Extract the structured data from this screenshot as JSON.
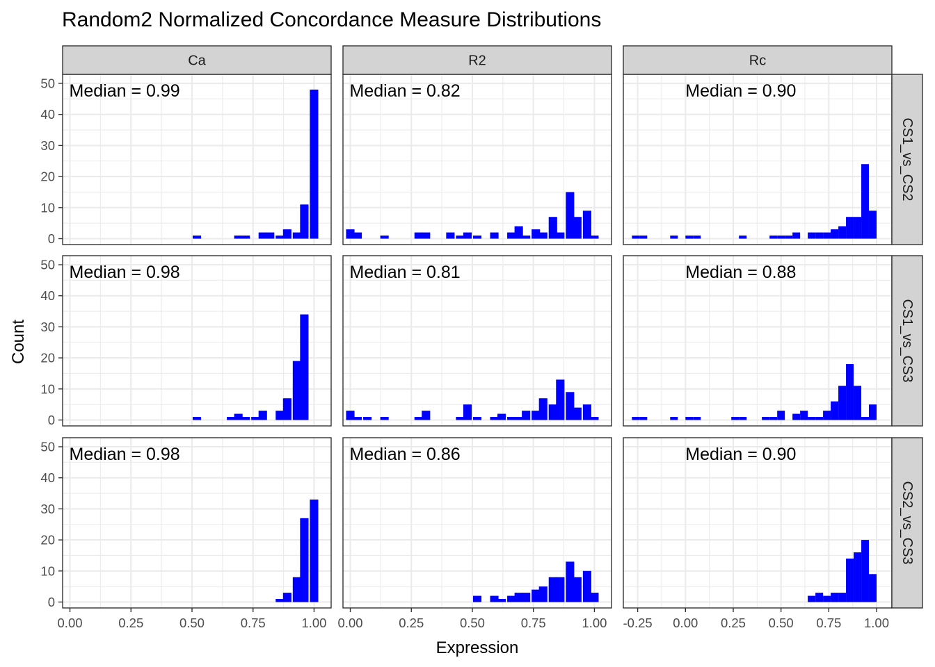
{
  "chart_data": {
    "type": "histogram-facet-grid",
    "title": "Random2 Normalized Concordance Measure Distributions",
    "xlabel": "Expression",
    "ylabel": "Count",
    "grid": true,
    "bar_color": "#0000ff",
    "columns": [
      "Ca",
      "R2",
      "Rc"
    ],
    "rows": [
      "CS1_vs_CS2",
      "CS1_vs_CS3",
      "CS2_vs_CS3"
    ],
    "ylim": [
      0,
      50
    ],
    "yticks": [
      "0",
      "10",
      "20",
      "30",
      "40",
      "50"
    ],
    "x_axes": {
      "Ca": {
        "xlim": [
          -0.03,
          1.07
        ],
        "ticks": [
          0,
          0.25,
          0.5,
          0.75,
          1.0
        ],
        "tick_labels": [
          "0.00",
          "0.25",
          "0.50",
          "0.75",
          "1.00"
        ],
        "binwidth": 0.0345
      },
      "R2": {
        "xlim": [
          -0.03,
          1.07
        ],
        "ticks": [
          0,
          0.25,
          0.5,
          0.75,
          1.0
        ],
        "tick_labels": [
          "0.00",
          "0.25",
          "0.50",
          "0.75",
          "1.00"
        ],
        "binwidth": 0.0345
      },
      "Rc": {
        "xlim": [
          -0.325,
          1.08
        ],
        "ticks": [
          -0.25,
          0,
          0.25,
          0.5,
          0.75,
          1.0
        ],
        "tick_labels": [
          "-0.25",
          "0.00",
          "0.25",
          "0.50",
          "0.75",
          "1.00"
        ],
        "binwidth": 0.04
      }
    },
    "panels": [
      {
        "row": "CS1_vs_CS2",
        "col": "Ca",
        "median_label": "Median = 0.99",
        "bins": [
          [
            0.52,
            1
          ],
          [
            0.69,
            1
          ],
          [
            0.72,
            1
          ],
          [
            0.79,
            2
          ],
          [
            0.82,
            2
          ],
          [
            0.86,
            1
          ],
          [
            0.89,
            3
          ],
          [
            0.93,
            2
          ],
          [
            0.96,
            11
          ],
          [
            1.0,
            48
          ]
        ]
      },
      {
        "row": "CS1_vs_CS2",
        "col": "R2",
        "median_label": "Median = 0.82",
        "bins": [
          [
            0.0,
            3
          ],
          [
            0.03,
            2
          ],
          [
            0.14,
            1
          ],
          [
            0.28,
            2
          ],
          [
            0.31,
            2
          ],
          [
            0.41,
            2
          ],
          [
            0.45,
            1
          ],
          [
            0.48,
            2
          ],
          [
            0.52,
            1
          ],
          [
            0.59,
            2
          ],
          [
            0.66,
            2
          ],
          [
            0.69,
            4
          ],
          [
            0.72,
            1
          ],
          [
            0.76,
            3
          ],
          [
            0.79,
            2
          ],
          [
            0.83,
            7
          ],
          [
            0.86,
            2
          ],
          [
            0.9,
            15
          ],
          [
            0.93,
            7
          ],
          [
            0.97,
            9
          ],
          [
            1.0,
            1
          ]
        ]
      },
      {
        "row": "CS1_vs_CS2",
        "col": "Rc",
        "median_label": "Median = 0.90",
        "bins": [
          [
            -0.26,
            1
          ],
          [
            -0.22,
            1
          ],
          [
            -0.06,
            1
          ],
          [
            0.02,
            1
          ],
          [
            0.06,
            1
          ],
          [
            0.3,
            1
          ],
          [
            0.46,
            1
          ],
          [
            0.5,
            1
          ],
          [
            0.54,
            1
          ],
          [
            0.58,
            2
          ],
          [
            0.66,
            2
          ],
          [
            0.7,
            2
          ],
          [
            0.74,
            2
          ],
          [
            0.78,
            3
          ],
          [
            0.82,
            4
          ],
          [
            0.86,
            7
          ],
          [
            0.9,
            7
          ],
          [
            0.94,
            24
          ],
          [
            0.98,
            9
          ]
        ]
      },
      {
        "row": "CS1_vs_CS3",
        "col": "Ca",
        "median_label": "Median = 0.98",
        "bins": [
          [
            0.52,
            1
          ],
          [
            0.66,
            1
          ],
          [
            0.69,
            2
          ],
          [
            0.72,
            1
          ],
          [
            0.76,
            1
          ],
          [
            0.79,
            3
          ],
          [
            0.86,
            3
          ],
          [
            0.89,
            7
          ],
          [
            0.93,
            19
          ],
          [
            0.96,
            34
          ]
        ]
      },
      {
        "row": "CS1_vs_CS3",
        "col": "R2",
        "median_label": "Median = 0.81",
        "bins": [
          [
            0.0,
            3
          ],
          [
            0.03,
            1
          ],
          [
            0.07,
            1
          ],
          [
            0.14,
            1
          ],
          [
            0.28,
            1
          ],
          [
            0.31,
            3
          ],
          [
            0.45,
            1
          ],
          [
            0.48,
            5
          ],
          [
            0.52,
            1
          ],
          [
            0.59,
            1
          ],
          [
            0.62,
            2
          ],
          [
            0.66,
            1
          ],
          [
            0.69,
            1
          ],
          [
            0.72,
            3
          ],
          [
            0.76,
            3
          ],
          [
            0.79,
            7
          ],
          [
            0.83,
            5
          ],
          [
            0.86,
            13
          ],
          [
            0.9,
            9
          ],
          [
            0.93,
            4
          ],
          [
            0.97,
            5
          ],
          [
            1.0,
            1
          ]
        ]
      },
      {
        "row": "CS1_vs_CS3",
        "col": "Rc",
        "median_label": "Median = 0.88",
        "bins": [
          [
            -0.26,
            1
          ],
          [
            -0.22,
            1
          ],
          [
            -0.06,
            1
          ],
          [
            0.02,
            1
          ],
          [
            0.06,
            1
          ],
          [
            0.26,
            1
          ],
          [
            0.3,
            1
          ],
          [
            0.42,
            1
          ],
          [
            0.46,
            1
          ],
          [
            0.5,
            3
          ],
          [
            0.58,
            2
          ],
          [
            0.62,
            3
          ],
          [
            0.66,
            1
          ],
          [
            0.7,
            1
          ],
          [
            0.74,
            3
          ],
          [
            0.78,
            6
          ],
          [
            0.82,
            11
          ],
          [
            0.86,
            18
          ],
          [
            0.9,
            11
          ],
          [
            0.94,
            1
          ],
          [
            0.98,
            5
          ]
        ]
      },
      {
        "row": "CS2_vs_CS3",
        "col": "Ca",
        "median_label": "Median = 0.98",
        "bins": [
          [
            0.86,
            1
          ],
          [
            0.89,
            3
          ],
          [
            0.93,
            8
          ],
          [
            0.96,
            27
          ],
          [
            1.0,
            33
          ]
        ]
      },
      {
        "row": "CS2_vs_CS3",
        "col": "R2",
        "median_label": "Median = 0.86",
        "bins": [
          [
            0.52,
            2
          ],
          [
            0.59,
            2
          ],
          [
            0.62,
            1
          ],
          [
            0.66,
            2
          ],
          [
            0.69,
            3
          ],
          [
            0.72,
            3
          ],
          [
            0.76,
            4
          ],
          [
            0.79,
            5
          ],
          [
            0.83,
            8
          ],
          [
            0.86,
            8
          ],
          [
            0.9,
            13
          ],
          [
            0.93,
            8
          ],
          [
            0.97,
            10
          ],
          [
            1.0,
            3
          ]
        ]
      },
      {
        "row": "CS2_vs_CS3",
        "col": "Rc",
        "median_label": "Median = 0.90",
        "bins": [
          [
            0.66,
            2
          ],
          [
            0.7,
            3
          ],
          [
            0.74,
            2
          ],
          [
            0.78,
            3
          ],
          [
            0.82,
            3
          ],
          [
            0.86,
            14
          ],
          [
            0.9,
            16
          ],
          [
            0.94,
            20
          ],
          [
            0.98,
            9
          ]
        ]
      }
    ]
  }
}
